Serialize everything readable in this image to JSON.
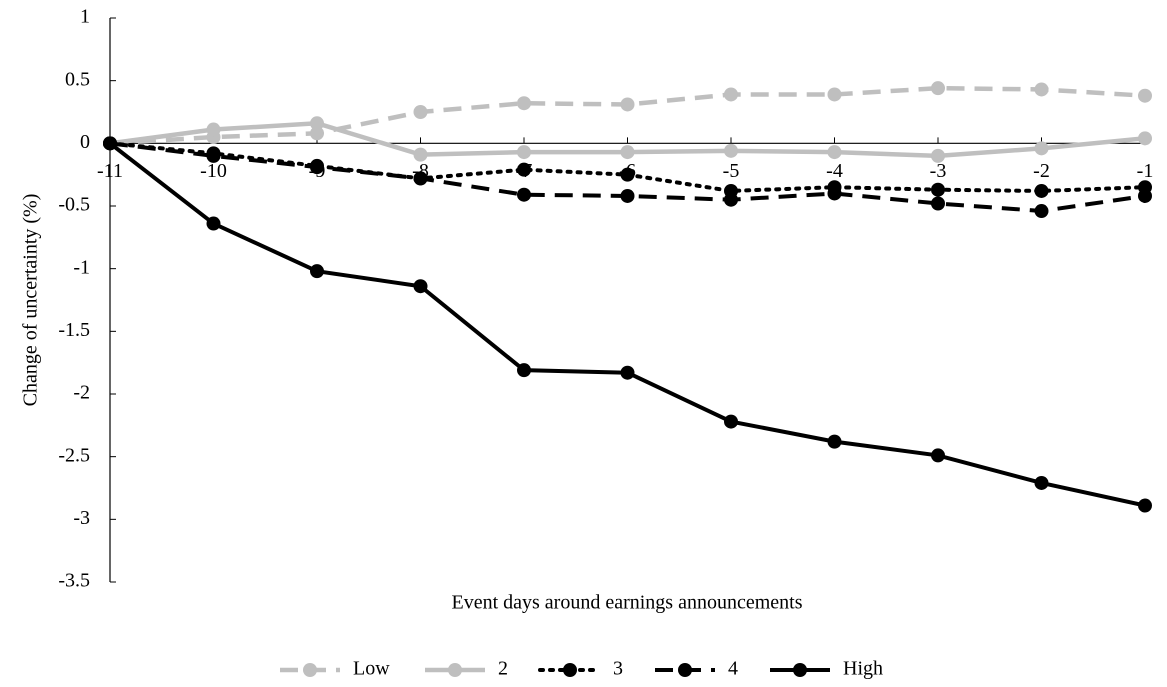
{
  "chart_data": {
    "type": "line",
    "x_label": "Event days around earnings announcements",
    "y_label": "Change of uncertainty (%)",
    "x": [
      -11,
      -10,
      -9,
      -8,
      -7,
      -6,
      -5,
      -4,
      -3,
      -2,
      -1
    ],
    "xlim": [
      -11,
      -1
    ],
    "xticks": [
      -11,
      -10,
      -9,
      -8,
      -7,
      -6,
      -5,
      -4,
      -3,
      -2,
      -1
    ],
    "ylim": [
      -3.5,
      1
    ],
    "yticks": [
      1,
      0.5,
      0,
      -0.5,
      -1,
      -1.5,
      -2,
      -2.5,
      -3,
      -3.5
    ],
    "legend": "bottom",
    "series": [
      {
        "name": "Low",
        "color": "#bfbfbf",
        "style": "dashed",
        "values": [
          0,
          0.05,
          0.08,
          0.25,
          0.32,
          0.31,
          0.39,
          0.39,
          0.44,
          0.43,
          0.38
        ]
      },
      {
        "name": "2",
        "color": "#bfbfbf",
        "style": "solid",
        "values": [
          0,
          0.11,
          0.16,
          -0.09,
          -0.07,
          -0.07,
          -0.06,
          -0.07,
          -0.1,
          -0.04,
          0.04
        ]
      },
      {
        "name": "3",
        "color": "#000000",
        "style": "dotted",
        "values": [
          0,
          -0.08,
          -0.18,
          -0.28,
          -0.21,
          -0.25,
          -0.38,
          -0.35,
          -0.37,
          -0.38,
          -0.35
        ]
      },
      {
        "name": "4",
        "color": "#000000",
        "style": "dashed",
        "values": [
          0,
          -0.1,
          -0.19,
          -0.28,
          -0.41,
          -0.42,
          -0.45,
          -0.4,
          -0.48,
          -0.54,
          -0.42
        ]
      },
      {
        "name": "High",
        "color": "#000000",
        "style": "solid",
        "values": [
          0,
          -0.64,
          -1.02,
          -1.14,
          -1.81,
          -1.83,
          -2.22,
          -2.38,
          -2.49,
          -2.71,
          -2.89
        ]
      }
    ]
  }
}
